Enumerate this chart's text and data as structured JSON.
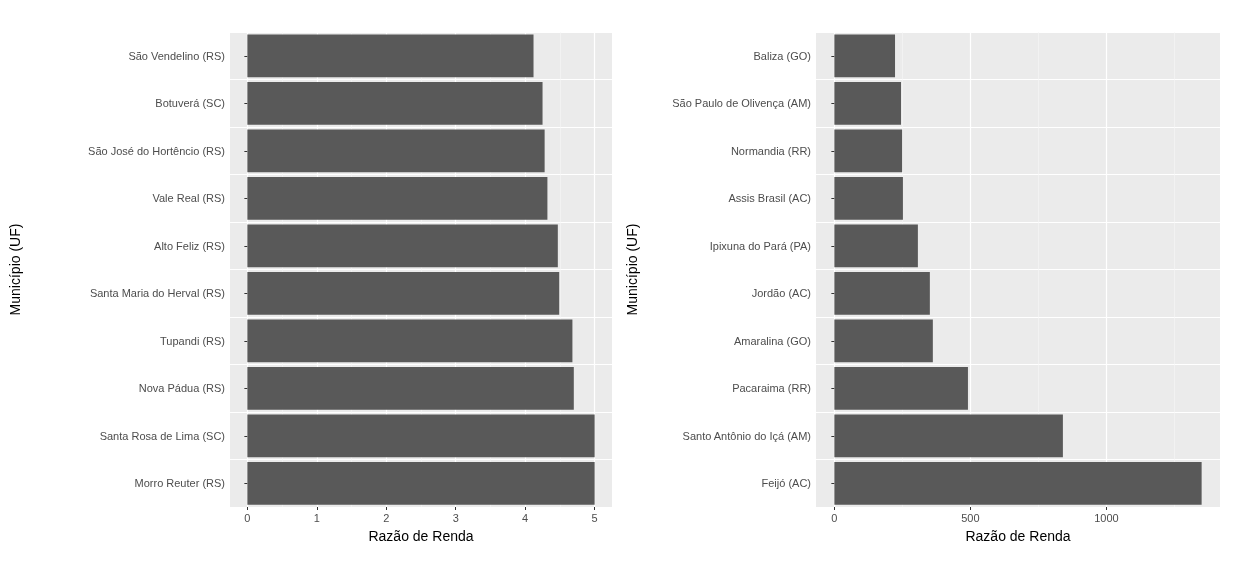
{
  "chart_data": [
    {
      "type": "bar",
      "orientation": "horizontal",
      "xlabel": "Razão de Renda",
      "ylabel": "Município (UF)",
      "categories": [
        "São Vendelino (RS)",
        "Botuverá (SC)",
        "São José do Hortêncio (RS)",
        "Vale Real (RS)",
        "Alto Feliz (RS)",
        "Santa Maria do Herval (RS)",
        "Tupandi (RS)",
        "Nova Pádua (RS)",
        "Santa Rosa de Lima (SC)",
        "Morro Reuter (RS)"
      ],
      "values": [
        4.12,
        4.25,
        4.28,
        4.32,
        4.47,
        4.49,
        4.68,
        4.7,
        5.0,
        5.0
      ],
      "color": "#595959",
      "xlim": [
        -0.25,
        5.25
      ],
      "xticks": [
        0,
        1,
        2,
        3,
        4,
        5
      ],
      "grid": true
    },
    {
      "type": "bar",
      "orientation": "horizontal",
      "xlabel": "Razão de Renda",
      "ylabel": "Município (UF)",
      "categories": [
        "Baliza (GO)",
        "São Paulo de Olivença (AM)",
        "Normandia (RR)",
        "Assis Brasil (AC)",
        "Ipixuna do Pará (PA)",
        "Jordão (AC)",
        "Amaralina (GO)",
        "Pacaraima (RR)",
        "Santo Antônio do Içá (AM)",
        "Feijó (AC)"
      ],
      "values": [
        223,
        245,
        249,
        252,
        307,
        351,
        362,
        491,
        840,
        1350
      ],
      "color": "#595959",
      "xlim": [
        -67.5,
        1417.5
      ],
      "xticks": [
        0,
        500,
        1000
      ],
      "grid": true
    }
  ]
}
